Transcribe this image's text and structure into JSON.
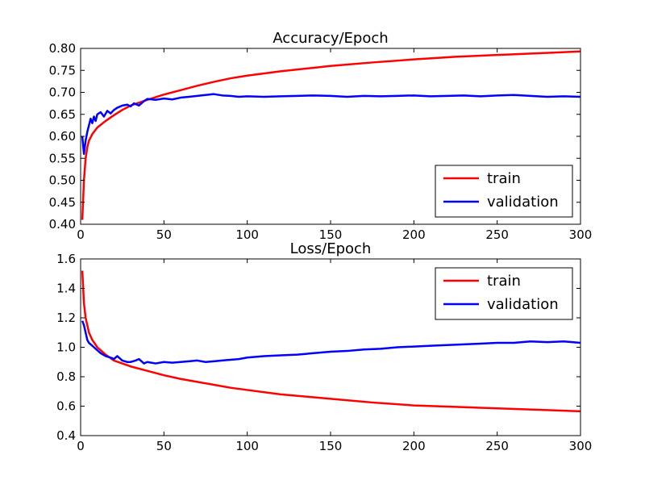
{
  "chart_data": [
    {
      "type": "line",
      "title": "Accuracy/Epoch",
      "xlabel": "",
      "ylabel": "",
      "xlim": [
        0,
        300
      ],
      "ylim": [
        0.4,
        0.8
      ],
      "xticks": [
        0,
        50,
        100,
        150,
        200,
        250,
        300
      ],
      "yticks": [
        0.4,
        0.45,
        0.5,
        0.55,
        0.6,
        0.65,
        0.7,
        0.75,
        0.8
      ],
      "ytick_decimals": 2,
      "grid": false,
      "legend": {
        "position": "lower-right"
      },
      "series": [
        {
          "name": "train",
          "color": "#ff0000",
          "points": [
            [
              1,
              0.41
            ],
            [
              2,
              0.5
            ],
            [
              3,
              0.55
            ],
            [
              4,
              0.575
            ],
            [
              5,
              0.59
            ],
            [
              7,
              0.605
            ],
            [
              10,
              0.62
            ],
            [
              15,
              0.635
            ],
            [
              20,
              0.648
            ],
            [
              25,
              0.66
            ],
            [
              30,
              0.67
            ],
            [
              40,
              0.683
            ],
            [
              50,
              0.695
            ],
            [
              60,
              0.705
            ],
            [
              70,
              0.715
            ],
            [
              80,
              0.724
            ],
            [
              90,
              0.732
            ],
            [
              100,
              0.738
            ],
            [
              120,
              0.748
            ],
            [
              140,
              0.756
            ],
            [
              150,
              0.76
            ],
            [
              175,
              0.768
            ],
            [
              200,
              0.775
            ],
            [
              225,
              0.781
            ],
            [
              250,
              0.785
            ],
            [
              275,
              0.789
            ],
            [
              300,
              0.793
            ]
          ]
        },
        {
          "name": "validation",
          "color": "#0000ff",
          "points": [
            [
              1,
              0.6
            ],
            [
              2,
              0.56
            ],
            [
              3,
              0.59
            ],
            [
              4,
              0.61
            ],
            [
              5,
              0.625
            ],
            [
              6,
              0.64
            ],
            [
              7,
              0.63
            ],
            [
              8,
              0.645
            ],
            [
              9,
              0.635
            ],
            [
              10,
              0.65
            ],
            [
              12,
              0.655
            ],
            [
              14,
              0.645
            ],
            [
              16,
              0.658
            ],
            [
              18,
              0.652
            ],
            [
              20,
              0.66
            ],
            [
              22,
              0.665
            ],
            [
              25,
              0.67
            ],
            [
              28,
              0.672
            ],
            [
              30,
              0.668
            ],
            [
              32,
              0.675
            ],
            [
              35,
              0.67
            ],
            [
              38,
              0.68
            ],
            [
              40,
              0.685
            ],
            [
              45,
              0.683
            ],
            [
              50,
              0.686
            ],
            [
              55,
              0.684
            ],
            [
              60,
              0.688
            ],
            [
              65,
              0.69
            ],
            [
              70,
              0.692
            ],
            [
              75,
              0.694
            ],
            [
              80,
              0.696
            ],
            [
              85,
              0.693
            ],
            [
              90,
              0.692
            ],
            [
              95,
              0.69
            ],
            [
              100,
              0.691
            ],
            [
              110,
              0.69
            ],
            [
              120,
              0.691
            ],
            [
              130,
              0.692
            ],
            [
              140,
              0.693
            ],
            [
              150,
              0.692
            ],
            [
              160,
              0.69
            ],
            [
              170,
              0.692
            ],
            [
              180,
              0.691
            ],
            [
              190,
              0.692
            ],
            [
              200,
              0.693
            ],
            [
              210,
              0.691
            ],
            [
              220,
              0.692
            ],
            [
              230,
              0.693
            ],
            [
              240,
              0.691
            ],
            [
              250,
              0.693
            ],
            [
              260,
              0.694
            ],
            [
              270,
              0.692
            ],
            [
              280,
              0.69
            ],
            [
              290,
              0.691
            ],
            [
              300,
              0.69
            ]
          ]
        }
      ]
    },
    {
      "type": "line",
      "title": "Loss/Epoch",
      "xlabel": "",
      "ylabel": "",
      "xlim": [
        0,
        300
      ],
      "ylim": [
        0.4,
        1.6
      ],
      "xticks": [
        0,
        50,
        100,
        150,
        200,
        250,
        300
      ],
      "yticks": [
        0.4,
        0.6,
        0.8,
        1.0,
        1.2,
        1.4,
        1.6
      ],
      "ytick_decimals": 1,
      "grid": false,
      "legend": {
        "position": "upper-right"
      },
      "series": [
        {
          "name": "train",
          "color": "#ff0000",
          "points": [
            [
              1,
              1.52
            ],
            [
              2,
              1.3
            ],
            [
              3,
              1.2
            ],
            [
              4,
              1.15
            ],
            [
              5,
              1.1
            ],
            [
              7,
              1.05
            ],
            [
              10,
              1.0
            ],
            [
              15,
              0.95
            ],
            [
              20,
              0.91
            ],
            [
              25,
              0.89
            ],
            [
              30,
              0.87
            ],
            [
              40,
              0.84
            ],
            [
              50,
              0.81
            ],
            [
              60,
              0.785
            ],
            [
              70,
              0.765
            ],
            [
              80,
              0.745
            ],
            [
              90,
              0.725
            ],
            [
              100,
              0.71
            ],
            [
              120,
              0.68
            ],
            [
              140,
              0.66
            ],
            [
              150,
              0.65
            ],
            [
              175,
              0.625
            ],
            [
              200,
              0.605
            ],
            [
              225,
              0.595
            ],
            [
              250,
              0.585
            ],
            [
              275,
              0.575
            ],
            [
              300,
              0.565
            ]
          ]
        },
        {
          "name": "validation",
          "color": "#0000ff",
          "points": [
            [
              1,
              1.18
            ],
            [
              2,
              1.15
            ],
            [
              3,
              1.1
            ],
            [
              4,
              1.05
            ],
            [
              5,
              1.03
            ],
            [
              6,
              1.02
            ],
            [
              8,
              1.0
            ],
            [
              10,
              0.98
            ],
            [
              12,
              0.96
            ],
            [
              15,
              0.94
            ],
            [
              18,
              0.93
            ],
            [
              20,
              0.92
            ],
            [
              22,
              0.94
            ],
            [
              25,
              0.91
            ],
            [
              28,
              0.9
            ],
            [
              30,
              0.9
            ],
            [
              33,
              0.91
            ],
            [
              35,
              0.92
            ],
            [
              38,
              0.89
            ],
            [
              40,
              0.9
            ],
            [
              45,
              0.89
            ],
            [
              50,
              0.9
            ],
            [
              55,
              0.895
            ],
            [
              60,
              0.9
            ],
            [
              65,
              0.905
            ],
            [
              70,
              0.91
            ],
            [
              75,
              0.9
            ],
            [
              80,
              0.905
            ],
            [
              85,
              0.91
            ],
            [
              90,
              0.915
            ],
            [
              95,
              0.92
            ],
            [
              100,
              0.93
            ],
            [
              110,
              0.94
            ],
            [
              120,
              0.945
            ],
            [
              130,
              0.95
            ],
            [
              140,
              0.96
            ],
            [
              150,
              0.97
            ],
            [
              160,
              0.975
            ],
            [
              170,
              0.985
            ],
            [
              180,
              0.99
            ],
            [
              190,
              1.0
            ],
            [
              200,
              1.005
            ],
            [
              210,
              1.01
            ],
            [
              220,
              1.015
            ],
            [
              230,
              1.02
            ],
            [
              240,
              1.025
            ],
            [
              250,
              1.03
            ],
            [
              260,
              1.03
            ],
            [
              270,
              1.04
            ],
            [
              280,
              1.035
            ],
            [
              290,
              1.04
            ],
            [
              300,
              1.03
            ]
          ]
        }
      ]
    }
  ]
}
